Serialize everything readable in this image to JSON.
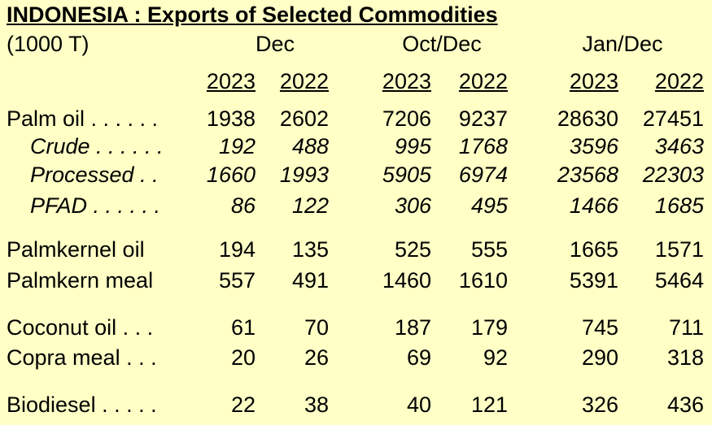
{
  "title": "INDONESIA :  Exports of Selected Commodities",
  "unit": "(1000 T)",
  "groups": [
    "Dec",
    "Oct/Dec",
    "Jan/Dec"
  ],
  "years": [
    "2023",
    "2022",
    "2023",
    "2022",
    "2023",
    "2022"
  ],
  "rows": [
    {
      "label": "Palm oil . . . . . .",
      "values": [
        "1938",
        "2602",
        "7206",
        "9237",
        "28630",
        "27451"
      ]
    },
    {
      "label": "Crude . . . . . .",
      "values": [
        "192",
        "488",
        "995",
        "1768",
        "3596",
        "3463"
      ]
    },
    {
      "label": "Processed . .",
      "values": [
        "1660",
        "1993",
        "5905",
        "6974",
        "23568",
        "22303"
      ]
    },
    {
      "label": "PFAD . . . . . .",
      "values": [
        "86",
        "122",
        "306",
        "495",
        "1466",
        "1685"
      ]
    },
    {
      "label": "Palmkernel oil",
      "values": [
        "194",
        "135",
        "525",
        "555",
        "1665",
        "1571"
      ]
    },
    {
      "label": "Palmkern meal",
      "values": [
        "557",
        "491",
        "1460",
        "1610",
        "5391",
        "5464"
      ]
    },
    {
      "label": "Coconut oil . . .",
      "values": [
        "61",
        "70",
        "187",
        "179",
        "745",
        "711"
      ]
    },
    {
      "label": "Copra meal . . .",
      "values": [
        "20",
        "26",
        "69",
        "92",
        "290",
        "318"
      ]
    },
    {
      "label": "Biodiesel . . . . .",
      "values": [
        "22",
        "38",
        "40",
        "121",
        "326",
        "436"
      ]
    }
  ]
}
